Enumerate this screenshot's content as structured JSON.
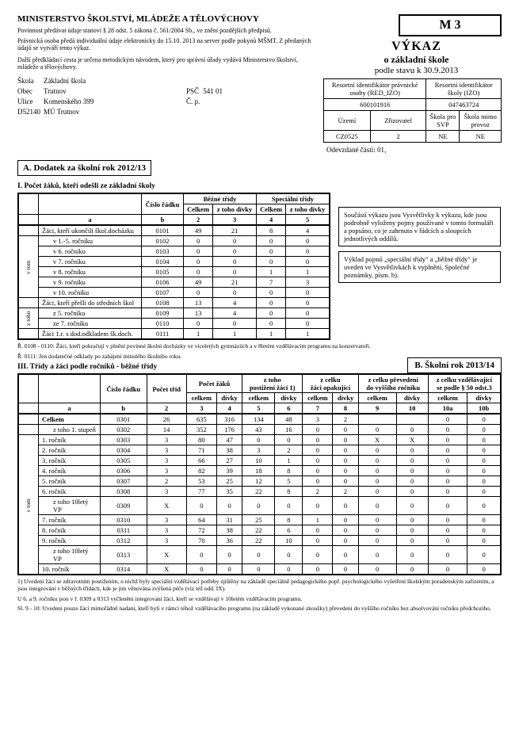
{
  "ministry": "MINISTERSTVO ŠKOLSTVÍ, MLÁDEŽE A TĚLOVÝCHOVY",
  "legal1": "Povinnost předávat údaje stanoví § 28 odst. 5 zákona č. 561/2004 Sb., ve znění pozdějších předpisů.",
  "legal2": "Právnická osoba předá individuální údaje elektronicky do 15.10. 2013 na server podle pokynů MŠMT. Z předaných údajů se vytváří tento výkaz.",
  "legal3": "Další předkládací cesta je určena metodickým návodem, který pro správní úřady vydává Ministerstvo školství, mládeže a tělovýchovy.",
  "m3": "M 3",
  "vykaz": "VÝKAZ",
  "vykaz_sub": "o základní škole",
  "vykaz_date": "podle stavu k 30.9.2013",
  "school": {
    "skola_l": "Škola",
    "skola_v": "Základní škola",
    "obec_l": "Obec",
    "obec_v": "Trutnov",
    "ulice_l": "Ulice",
    "ulice_v": "Komenského 399",
    "kod": "D52140",
    "mu": "MÚ Trutnov",
    "psc_l": "PSČ",
    "psc_v": "541 01",
    "cp_l": "Č. p."
  },
  "id": {
    "h1": "Resortní identifikátor právnické osoby (RED_IZO)",
    "h2": "Resortní identifikátor školy (IZO)",
    "v1": "600101916",
    "v2": "047463724",
    "uzemi_l": "Území",
    "zriz_l": "Zřizovatel",
    "svp_l": "Škola pro SVP",
    "mimo_l": "Škola mimo provoz",
    "uzemi_v": "CZ0525",
    "zriz_v": "2",
    "svp_v": "NE",
    "mimo_v": "NE"
  },
  "odevzdane": "Odevzdané části: 01,",
  "sectA": "A. Dodatek za školní rok 2012/13",
  "sectA_sub": "I. Počet žáků, kteří odešli ze základní školy",
  "hdrA": {
    "cislo": "Číslo řádku",
    "bezne": "Běžné třídy",
    "spec": "Speciální třídy",
    "celkem": "Celkem",
    "divky": "z toho dívky",
    "a": "a",
    "b": "b"
  },
  "rowsA": [
    {
      "lbl": "Žáci, kteří ukončili škol.docházku",
      "r": "0101",
      "c2": "49",
      "c3": "21",
      "c4": "8",
      "c5": "4",
      "bold": true
    },
    {
      "lbl": "v 1.-5. ročníku",
      "r": "0102",
      "c2": "0",
      "c3": "0",
      "c4": "0",
      "c5": "0",
      "ind": true
    },
    {
      "lbl": "v 6. ročníku",
      "r": "0103",
      "c2": "0",
      "c3": "0",
      "c4": "0",
      "c5": "0",
      "ind": true
    },
    {
      "lbl": "v 7. ročníku",
      "r": "0104",
      "c2": "0",
      "c3": "0",
      "c4": "0",
      "c5": "0",
      "ind": true
    },
    {
      "lbl": "v 8. ročníku",
      "r": "0105",
      "c2": "0",
      "c3": "0",
      "c4": "1",
      "c5": "1",
      "ind": true
    },
    {
      "lbl": "v 9. ročníku",
      "r": "0106",
      "c2": "49",
      "c3": "21",
      "c4": "7",
      "c5": "3",
      "ind": true
    },
    {
      "lbl": "v 10. ročníku",
      "r": "0107",
      "c2": "0",
      "c3": "0",
      "c4": "0",
      "c5": "0",
      "ind": true
    },
    {
      "lbl": "Žáci, kteří přešli do středních škol",
      "r": "0108",
      "c2": "13",
      "c3": "4",
      "c4": "0",
      "c5": "0",
      "bold": true
    },
    {
      "lbl": "z 5. ročníku",
      "r": "0109",
      "c2": "13",
      "c3": "4",
      "c4": "0",
      "c5": "0",
      "ind": true
    },
    {
      "lbl": "ze 7. ročníku",
      "r": "0110",
      "c2": "0",
      "c3": "0",
      "c4": "0",
      "c5": "0",
      "ind": true
    },
    {
      "lbl": "Žáci 1.r. s dod.odkladem šk.doch.",
      "r": "0111",
      "c2": "1",
      "c3": "1",
      "c4": "1",
      "c5": "1",
      "bold": true
    }
  ],
  "box1": "Součástí výkazu jsou Vysvětlivky k výkazu, kde jsou podrobně vyloženy pojmy používané v tomto formuláři a popsáno, co je zahrnuto v řádcích a sloupcích jednotlivých oddílů.",
  "box2": "Výklad pojmů „speciální třídy\" a „běžné třídy\" je uveden ve Vysvětlivkách k vyplnění, Společné poznámky, písm. b).",
  "footA1": "Ř. 0108 - 0110: Žáci, kteří pokračují v plnění povinné školní docházky ve víceletých gymnáziích a v 8letém vzdělávacím programu na konzervatoři.",
  "footA2": "Ř. 0111: Jen dodatečné odklady po zahájení minulého školního roku.",
  "sectB": "B. Školní rok 2013/14",
  "sectA3": "III. Třídy a žáci podle ročníků - běžné třídy",
  "hdrB": {
    "cislo": "Číslo řádku",
    "pocet_trid": "Počet tříd",
    "pocet_zaku": "Počet žáků",
    "postiz": "z toho\npostižení žáci 1)",
    "opak": "z celku\nžáci opakující",
    "prev": "z celku převedení\ndo vyššího ročníku",
    "vzd": "z celku vzdělávající\nse podle § 50 odst.3",
    "celkem": "celkem",
    "divky": "dívky",
    "a": "a",
    "b": "b"
  },
  "rowsB": [
    {
      "lbl": "Celkem",
      "r": "0301",
      "t": "26",
      "c": [
        "635",
        "316",
        "134",
        "48",
        "3",
        "2",
        "",
        "",
        "0",
        "0"
      ],
      "bold": true
    },
    {
      "lbl": "z toho 1. stupeň",
      "r": "0302",
      "t": "14",
      "c": [
        "352",
        "176",
        "43",
        "16",
        "0",
        "0",
        "0",
        "0",
        "0",
        "0"
      ],
      "ind": true
    },
    {
      "lbl": "1. ročník",
      "r": "0303",
      "t": "3",
      "c": [
        "80",
        "47",
        "0",
        "0",
        "0",
        "0",
        "X",
        "X",
        "0",
        "0"
      ]
    },
    {
      "lbl": "2. ročník",
      "r": "0304",
      "t": "3",
      "c": [
        "71",
        "38",
        "3",
        "2",
        "0",
        "0",
        "0",
        "0",
        "0",
        "0"
      ]
    },
    {
      "lbl": "3. ročník",
      "r": "0305",
      "t": "3",
      "c": [
        "66",
        "27",
        "10",
        "1",
        "0",
        "0",
        "0",
        "0",
        "0",
        "0"
      ]
    },
    {
      "lbl": "4. ročník",
      "r": "0306",
      "t": "3",
      "c": [
        "82",
        "39",
        "18",
        "8",
        "0",
        "0",
        "0",
        "0",
        "0",
        "0"
      ]
    },
    {
      "lbl": "5. ročník",
      "r": "0307",
      "t": "2",
      "c": [
        "53",
        "25",
        "12",
        "5",
        "0",
        "0",
        "0",
        "0",
        "0",
        "0"
      ]
    },
    {
      "lbl": "6. ročník",
      "r": "0308",
      "t": "3",
      "c": [
        "77",
        "35",
        "22",
        "8",
        "2",
        "2",
        "0",
        "0",
        "0",
        "0"
      ]
    },
    {
      "lbl": "z toho 10letý VP",
      "r": "0309",
      "t": "X",
      "c": [
        "0",
        "0",
        "0",
        "0",
        "0",
        "0",
        "0",
        "0",
        "0",
        "0"
      ],
      "ind": true
    },
    {
      "lbl": "7. ročník",
      "r": "0310",
      "t": "3",
      "c": [
        "64",
        "31",
        "25",
        "8",
        "1",
        "0",
        "0",
        "0",
        "0",
        "0"
      ]
    },
    {
      "lbl": "8. ročník",
      "r": "0311",
      "t": "3",
      "c": [
        "72",
        "38",
        "22",
        "6",
        "0",
        "0",
        "0",
        "0",
        "0",
        "0"
      ]
    },
    {
      "lbl": "9. ročník",
      "r": "0312",
      "t": "3",
      "c": [
        "70",
        "36",
        "22",
        "10",
        "0",
        "0",
        "0",
        "0",
        "0",
        "0"
      ]
    },
    {
      "lbl": "z toho 10letý VP",
      "r": "0313",
      "t": "X",
      "c": [
        "0",
        "0",
        "0",
        "0",
        "0",
        "0",
        "0",
        "0",
        "0",
        "0"
      ],
      "ind": true
    },
    {
      "lbl": "10. ročník",
      "r": "0314",
      "t": "X",
      "c": [
        "0",
        "0",
        "0",
        "0",
        "0",
        "0",
        "0",
        "0",
        "0",
        "0"
      ]
    }
  ],
  "footB1": "1) Uvedeni žáci se zdravotním postižením, u nichž byly speciální vzdělávací potřeby zjištěny na základě speciálně pedagogického popř. psychologického vyšetření školským poradenským zařízením, a jsou integrováni v běžných třídách, kde je jim věnována zvýšená péče (viz též odd. IX).",
  "footB2": "U 6. a 9. ročníku jsou v ř. 0309 a 0313 vyčlenění integrovaní žáci, kteří se vzdělávají v 10letém vzdělávacím programu.",
  "footB3": "Sl. 9 - 10: Uvedeni pouze žáci mimořádně nadaní, kteří byli v rámci téhož vzdělávacího programu (na základě vykonané zkoušky) převedeni do vyššího ročníku bez absolvování ročníku předchozího."
}
